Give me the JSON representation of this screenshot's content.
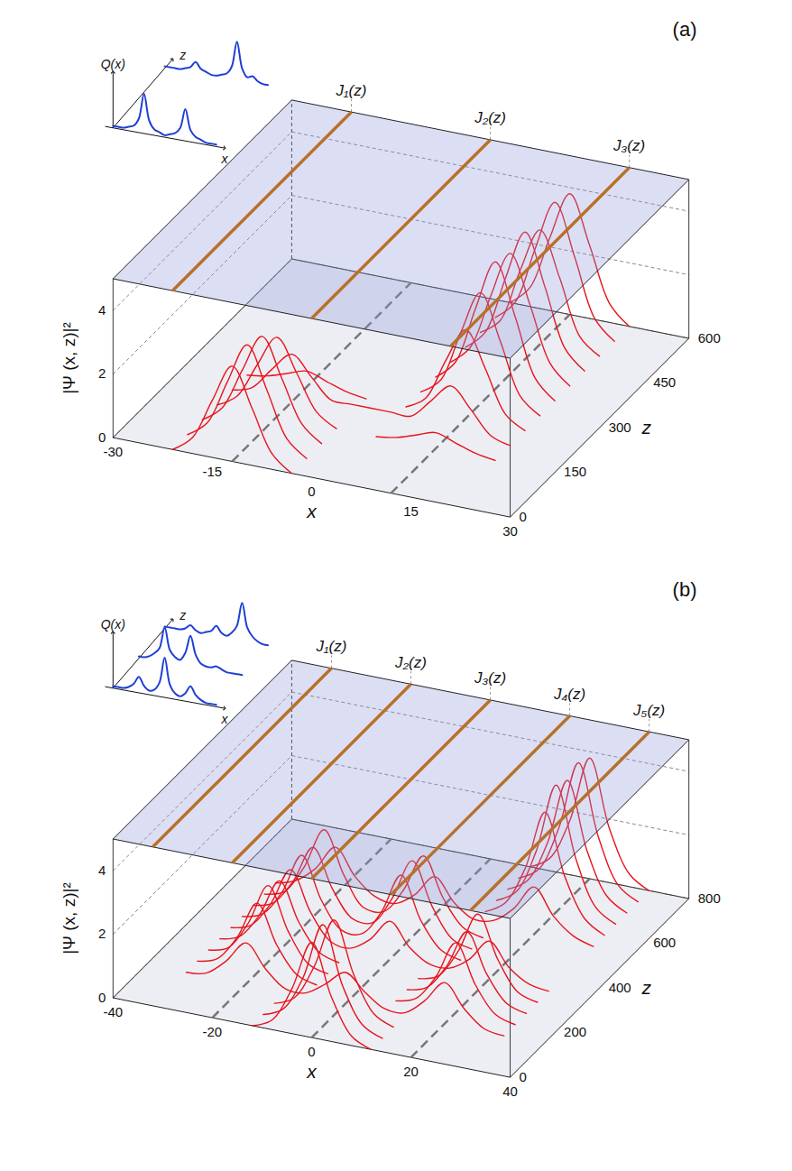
{
  "chart_data": [
    {
      "type": "waterfall3d",
      "title": "(a)",
      "xlabel": "x",
      "zlabel": "z",
      "ylabel": "|Ψ (x, z)|²",
      "color": "#e8141c",
      "grid": true,
      "xlim": [
        -30,
        30
      ],
      "xticks": [
        -30,
        -15,
        0,
        15,
        30
      ],
      "zlim": [
        0,
        600
      ],
      "zticks": [
        0,
        150,
        300,
        450,
        600
      ],
      "ylim": [
        0,
        5
      ],
      "yticks": [
        0,
        2,
        4
      ],
      "x": [
        -30,
        -27,
        -24,
        -21,
        -18,
        -15,
        -12,
        -9,
        -6,
        -3,
        0,
        3,
        6,
        9,
        12,
        15,
        18,
        21,
        24,
        27,
        30
      ],
      "profiles": [
        {
          "z": 0,
          "values": [
            0,
            0,
            0,
            0,
            0.5,
            1.8,
            3,
            1.8,
            0.5,
            0,
            0,
            0,
            0,
            0,
            0,
            0,
            0,
            0,
            0,
            0,
            0
          ]
        },
        {
          "z": 50,
          "values": [
            0,
            0,
            0,
            0,
            0.5,
            1.9,
            3.2,
            1.9,
            0.5,
            0,
            0,
            0,
            0,
            0,
            0,
            0,
            0,
            0,
            0,
            0,
            0
          ]
        },
        {
          "z": 100,
          "values": [
            0,
            0,
            0,
            0,
            0.5,
            1.8,
            3,
            1.8,
            0.5,
            0,
            0,
            0,
            0,
            0,
            0,
            0,
            0,
            0,
            0,
            0,
            0
          ]
        },
        {
          "z": 150,
          "values": [
            0,
            0,
            0,
            0,
            0.4,
            1.5,
            2.5,
            1.5,
            0.4,
            0,
            0,
            0,
            0.1,
            0.3,
            0.5,
            0.3,
            0.1,
            0,
            0,
            0,
            0
          ]
        },
        {
          "z": 200,
          "values": [
            0,
            0,
            0,
            0,
            0.2,
            0.9,
            1.5,
            0.9,
            0.3,
            0.3,
            0.3,
            0.3,
            0.3,
            0.9,
            1.5,
            0.9,
            0.2,
            0,
            0,
            0,
            0
          ]
        },
        {
          "z": 250,
          "values": [
            0,
            0,
            0,
            0,
            0.1,
            0.3,
            0.5,
            0.3,
            0.1,
            0,
            0,
            0,
            0.4,
            1.7,
            2.8,
            1.7,
            0.4,
            0,
            0,
            0,
            0
          ]
        },
        {
          "z": 300,
          "values": [
            0,
            0,
            0,
            0,
            0,
            0,
            0,
            0,
            0,
            0,
            0,
            0,
            0.5,
            2.1,
            3.5,
            2.1,
            0.5,
            0,
            0,
            0,
            0
          ]
        },
        {
          "z": 350,
          "values": [
            0,
            0,
            0,
            0,
            0,
            0,
            0,
            0,
            0,
            0,
            0,
            0,
            0.6,
            2.4,
            4,
            2.4,
            0.6,
            0,
            0,
            0,
            0
          ]
        },
        {
          "z": 400,
          "values": [
            0,
            0,
            0,
            0,
            0,
            0,
            0,
            0,
            0,
            0,
            0,
            0,
            0.6,
            2.3,
            3.8,
            2.3,
            0.6,
            0,
            0,
            0,
            0
          ]
        },
        {
          "z": 450,
          "values": [
            0,
            0,
            0,
            0,
            0,
            0,
            0,
            0,
            0,
            0,
            0,
            0,
            0.6,
            2.4,
            4,
            2.4,
            0.6,
            0,
            0,
            0,
            0
          ]
        },
        {
          "z": 500,
          "values": [
            0,
            0,
            0,
            0,
            0,
            0,
            0,
            0,
            0,
            0,
            0,
            0,
            0.5,
            2.2,
            3.6,
            2.2,
            0.5,
            0,
            0,
            0,
            0
          ]
        },
        {
          "z": 550,
          "values": [
            0,
            0,
            0,
            0,
            0,
            0,
            0,
            0,
            0,
            0,
            0,
            0,
            0.6,
            2.4,
            4,
            2.4,
            0.6,
            0,
            0,
            0,
            0
          ]
        },
        {
          "z": 600,
          "values": [
            0,
            0,
            0,
            0,
            0,
            0,
            0,
            0,
            0,
            0,
            0,
            0,
            0.6,
            2.3,
            3.8,
            2.3,
            0.6,
            0,
            0,
            0,
            0
          ]
        }
      ],
      "channels": [
        -12,
        12
      ],
      "currents": [
        {
          "name": "J₁(z)",
          "x": -21
        },
        {
          "name": "J₂(z)",
          "x": 0
        },
        {
          "name": "J₃(z)",
          "x": 21
        }
      ],
      "inset": {
        "ylabel": "Q(x)",
        "xlabel": "x",
        "zlabel": "z",
        "color": "#1f3fd6",
        "profiles": [
          {
            "z": 0,
            "values": [
              0.05,
              0.05,
              0.05,
              0.1,
              0.15,
              0.35,
              1,
              0.35,
              0.15,
              0.1,
              0.05,
              0.1,
              0.15,
              0.3,
              0.8,
              0.3,
              0.15,
              0.1,
              0.05,
              0.05,
              0.05
            ]
          },
          {
            "z": 600,
            "values": [
              0.05,
              0.05,
              0.05,
              0.05,
              0.1,
              0.15,
              0.3,
              0.15,
              0.1,
              0.05,
              0.05,
              0.1,
              0.15,
              0.35,
              1,
              0.35,
              0.15,
              0.2,
              0.1,
              0.05,
              0.05
            ]
          }
        ]
      }
    },
    {
      "type": "waterfall3d",
      "title": "(b)",
      "xlabel": "x",
      "zlabel": "z",
      "ylabel": "|Ψ (x, z)|²",
      "color": "#e8141c",
      "grid": true,
      "xlim": [
        -40,
        40
      ],
      "xticks": [
        -40,
        -20,
        0,
        20,
        40
      ],
      "zlim": [
        0,
        800
      ],
      "zticks": [
        0,
        200,
        400,
        600,
        800
      ],
      "ylim": [
        0,
        5
      ],
      "yticks": [
        0,
        2,
        4
      ],
      "x": [
        -40,
        -36,
        -32,
        -28,
        -24,
        -20,
        -16,
        -12,
        -8,
        -4,
        0,
        4,
        8,
        12,
        16,
        20,
        24,
        28,
        32,
        36,
        40
      ],
      "profiles": [
        {
          "z": 0,
          "values": [
            0,
            0,
            0,
            0,
            0,
            0,
            0,
            0,
            0.3,
            1.4,
            3,
            1.4,
            0.3,
            0,
            0,
            0,
            0,
            0,
            0,
            0,
            0
          ]
        },
        {
          "z": 50,
          "values": [
            0,
            0,
            0,
            0,
            0,
            0,
            0,
            0,
            0.3,
            1.4,
            3.2,
            1.4,
            0.3,
            0,
            0,
            0,
            0,
            0,
            0,
            0,
            0
          ]
        },
        {
          "z": 100,
          "values": [
            0,
            0,
            0,
            0,
            0,
            0,
            0,
            0,
            0.3,
            1.4,
            3,
            1.4,
            0.3,
            0,
            0,
            0,
            0,
            0,
            0,
            0,
            0
          ]
        },
        {
          "z": 150,
          "values": [
            0,
            0,
            0,
            0.1,
            0.6,
            1.3,
            0.6,
            0.1,
            0.1,
            0.5,
            1,
            0.5,
            0.1,
            0.1,
            0.6,
            1.3,
            0.6,
            0.1,
            0,
            0,
            0
          ]
        },
        {
          "z": 200,
          "values": [
            0,
            0,
            0,
            0.2,
            1,
            2.2,
            1,
            0.2,
            0,
            0,
            0,
            0,
            0,
            0.2,
            1,
            2.2,
            1,
            0.2,
            0,
            0,
            0
          ]
        },
        {
          "z": 250,
          "values": [
            0,
            0,
            0,
            0.2,
            1.1,
            2.4,
            1.1,
            0.2,
            0,
            0,
            0,
            0,
            0,
            0.2,
            1,
            2.2,
            1,
            0.2,
            0,
            0,
            0
          ]
        },
        {
          "z": 300,
          "values": [
            0,
            0,
            0,
            0.2,
            1,
            2.2,
            1,
            0.2,
            0,
            0,
            0,
            0,
            0,
            0.2,
            1.1,
            2.4,
            1.1,
            0.2,
            0,
            0,
            0
          ]
        },
        {
          "z": 350,
          "values": [
            0,
            0,
            0,
            0.2,
            1,
            2.2,
            1,
            0.2,
            0.1,
            0.5,
            1.2,
            0.5,
            0.1,
            0.1,
            0.5,
            1.2,
            0.5,
            0.1,
            0,
            0,
            0
          ]
        },
        {
          "z": 400,
          "values": [
            0,
            0,
            0,
            0.2,
            1,
            2.3,
            1,
            0.2,
            0.2,
            1,
            2.3,
            1,
            0.2,
            0,
            0,
            0,
            0,
            0,
            0,
            0,
            0
          ]
        },
        {
          "z": 450,
          "values": [
            0,
            0,
            0,
            0.2,
            1,
            2.2,
            1,
            0.2,
            0.2,
            1.1,
            2.4,
            1.1,
            0.2,
            0,
            0,
            0,
            0,
            0,
            0,
            0,
            0
          ]
        },
        {
          "z": 500,
          "values": [
            0,
            0,
            0,
            0.2,
            1.1,
            2.4,
            1.1,
            0.2,
            0.2,
            1,
            2.2,
            1,
            0.2,
            0,
            0,
            0,
            0,
            0,
            0,
            0,
            0
          ]
        },
        {
          "z": 550,
          "values": [
            0,
            0,
            0,
            0.2,
            0.7,
            1.5,
            0.7,
            0.2,
            0.1,
            0.5,
            1.2,
            0.5,
            0.1,
            0.2,
            0.7,
            1.5,
            0.7,
            0.2,
            0,
            0,
            0
          ]
        },
        {
          "z": 600,
          "values": [
            0,
            0,
            0,
            0,
            0,
            0,
            0,
            0,
            0,
            0,
            0,
            0,
            0,
            0.4,
            1.6,
            3.5,
            1.6,
            0.4,
            0,
            0,
            0
          ]
        },
        {
          "z": 650,
          "values": [
            0,
            0,
            0,
            0,
            0,
            0,
            0,
            0,
            0,
            0,
            0,
            0,
            0,
            0.4,
            1.8,
            4,
            1.8,
            0.4,
            0,
            0,
            0
          ]
        },
        {
          "z": 700,
          "values": [
            0,
            0,
            0,
            0,
            0,
            0,
            0,
            0,
            0,
            0,
            0,
            0,
            0,
            0.4,
            1.7,
            3.8,
            1.7,
            0.4,
            0,
            0,
            0
          ]
        },
        {
          "z": 750,
          "values": [
            0,
            0,
            0,
            0,
            0,
            0,
            0,
            0,
            0,
            0,
            0,
            0,
            0,
            0.4,
            1.8,
            4,
            1.8,
            0.4,
            0,
            0,
            0
          ]
        },
        {
          "z": 800,
          "values": [
            0,
            0,
            0,
            0,
            0,
            0,
            0,
            0,
            0,
            0,
            0,
            0,
            0,
            0.4,
            1.7,
            3.8,
            1.7,
            0.4,
            0,
            0,
            0
          ]
        }
      ],
      "channels": [
        -20,
        0,
        20
      ],
      "currents": [
        {
          "name": "J₁(z)",
          "x": -32
        },
        {
          "name": "J₂(z)",
          "x": -16
        },
        {
          "name": "J₃(z)",
          "x": 0
        },
        {
          "name": "J₄(z)",
          "x": 16
        },
        {
          "name": "J₅(z)",
          "x": 32
        }
      ],
      "inset": {
        "ylabel": "Q(x)",
        "xlabel": "x",
        "zlabel": "z",
        "color": "#1f3fd6",
        "profiles": [
          {
            "z": 0,
            "values": [
              0.05,
              0.05,
              0.05,
              0.1,
              0.2,
              0.4,
              0.2,
              0.1,
              0.15,
              0.35,
              1,
              0.35,
              0.15,
              0.1,
              0.2,
              0.4,
              0.2,
              0.1,
              0.05,
              0.05,
              0.05
            ]
          },
          {
            "z": 400,
            "values": [
              0.05,
              0.05,
              0.1,
              0.2,
              0.35,
              0.9,
              0.35,
              0.2,
              0.15,
              0.35,
              0.8,
              0.35,
              0.15,
              0.1,
              0.1,
              0.15,
              0.1,
              0.05,
              0.05,
              0.05,
              0.05
            ]
          },
          {
            "z": 800,
            "values": [
              0.05,
              0.05,
              0.05,
              0.05,
              0.1,
              0.2,
              0.1,
              0.05,
              0.1,
              0.15,
              0.3,
              0.15,
              0.1,
              0.2,
              0.4,
              1,
              0.4,
              0.2,
              0.1,
              0.05,
              0.05
            ]
          }
        ]
      }
    }
  ]
}
